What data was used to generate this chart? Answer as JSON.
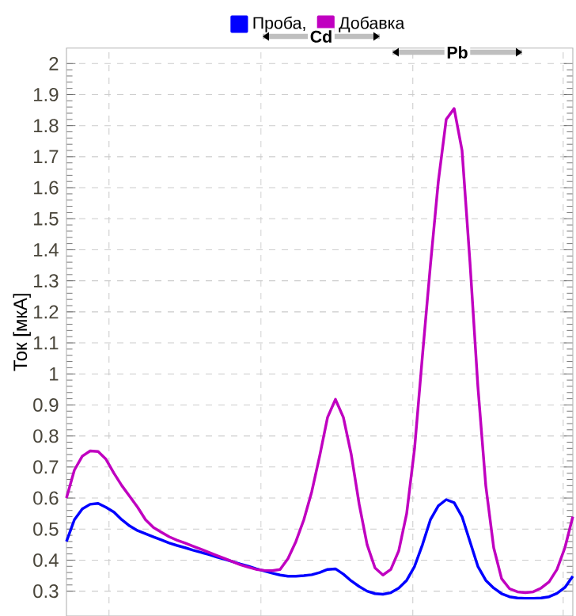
{
  "chart_data": {
    "type": "line",
    "ylabel": "Ток [мкА]",
    "categories": [
      null,
      null,
      null,
      null,
      null,
      null,
      null,
      null,
      null,
      null,
      null,
      null,
      null,
      null,
      null,
      null,
      null,
      null,
      null,
      null,
      null,
      null,
      null,
      null,
      null,
      null,
      null,
      null,
      null,
      null,
      null,
      null,
      null,
      null,
      null,
      null,
      null,
      null,
      null,
      null,
      null,
      null,
      null,
      null,
      null,
      null,
      null,
      null,
      null,
      null,
      null,
      null,
      null,
      null,
      null,
      null,
      null,
      null,
      null,
      null,
      null,
      null,
      null,
      null,
      null
    ],
    "series": [
      {
        "name": "Проба,",
        "color": "#0000ff",
        "values": [
          0.46,
          0.53,
          0.565,
          0.58,
          0.583,
          0.57,
          0.555,
          0.53,
          0.51,
          0.495,
          0.485,
          0.475,
          0.465,
          0.455,
          0.447,
          0.44,
          0.432,
          0.425,
          0.418,
          0.41,
          0.403,
          0.395,
          0.387,
          0.38,
          0.372,
          0.365,
          0.358,
          0.352,
          0.348,
          0.348,
          0.35,
          0.353,
          0.36,
          0.37,
          0.372,
          0.355,
          0.333,
          0.315,
          0.3,
          0.292,
          0.29,
          0.295,
          0.31,
          0.335,
          0.38,
          0.45,
          0.53,
          0.575,
          0.595,
          0.585,
          0.54,
          0.46,
          0.38,
          0.335,
          0.31,
          0.292,
          0.282,
          0.278,
          0.277,
          0.277,
          0.278,
          0.282,
          0.293,
          0.312,
          0.348
        ]
      },
      {
        "name": "Добавка",
        "color": "#c000c0",
        "values": [
          0.6,
          0.69,
          0.735,
          0.752,
          0.75,
          0.725,
          0.68,
          0.64,
          0.605,
          0.57,
          0.53,
          0.505,
          0.49,
          0.475,
          0.464,
          0.455,
          0.445,
          0.435,
          0.425,
          0.415,
          0.405,
          0.395,
          0.385,
          0.377,
          0.37,
          0.367,
          0.366,
          0.37,
          0.405,
          0.46,
          0.53,
          0.62,
          0.735,
          0.86,
          0.918,
          0.86,
          0.74,
          0.58,
          0.45,
          0.375,
          0.352,
          0.37,
          0.43,
          0.55,
          0.76,
          1.06,
          1.35,
          1.62,
          1.82,
          1.855,
          1.72,
          1.36,
          0.96,
          0.64,
          0.44,
          0.34,
          0.308,
          0.298,
          0.295,
          0.298,
          0.31,
          0.33,
          0.37,
          0.44,
          0.54
        ]
      }
    ],
    "ylim": [
      0.22,
      2.05
    ],
    "yticks": [
      0.3,
      0.4,
      0.5,
      0.6,
      0.7,
      0.8,
      0.9,
      1,
      1.1,
      1.2,
      1.3,
      1.4,
      1.5,
      1.6,
      1.7,
      1.8,
      1.9,
      2
    ],
    "annotations": [
      "Cd",
      "Pb"
    ],
    "grid": true,
    "legend": "top",
    "marker": "none",
    "line_style": "solid",
    "tick_labels": "y"
  }
}
